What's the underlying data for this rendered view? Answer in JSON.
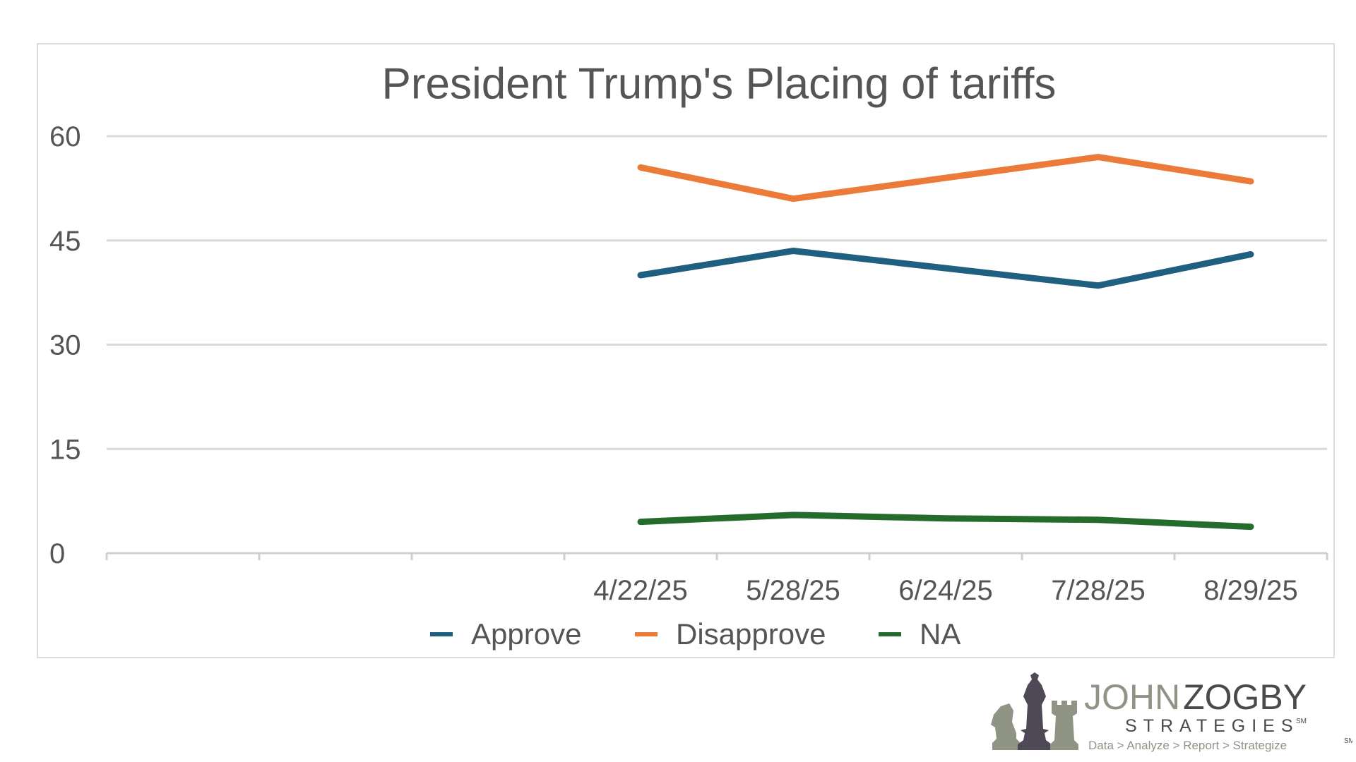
{
  "chart_data": {
    "type": "line",
    "title": "President Trump's Placing of tariffs",
    "xlabel": "",
    "ylabel": "",
    "categories": [
      "",
      "",
      "",
      "4/22/25",
      "5/28/25",
      "6/24/25",
      "7/28/25",
      "8/29/25"
    ],
    "ylim": [
      0,
      60
    ],
    "yticks": [
      0,
      15,
      30,
      45,
      60
    ],
    "grid": true,
    "legend": "bottom",
    "series": [
      {
        "name": "Approve",
        "color": "#1f5f80",
        "values": [
          null,
          null,
          null,
          40,
          43.5,
          41,
          38.5,
          43
        ]
      },
      {
        "name": "Disapprove",
        "color": "#ec7b3a",
        "values": [
          null,
          null,
          null,
          55.5,
          51,
          54,
          57,
          53.5
        ]
      },
      {
        "name": "NA",
        "color": "#256b2c",
        "values": [
          null,
          null,
          null,
          4.5,
          5.5,
          5,
          4.8,
          3.8
        ]
      }
    ]
  },
  "logo": {
    "name_part1": "JOHN",
    "name_part2": "ZOGBY",
    "subtitle": "STRATEGIES",
    "mark": "SM",
    "tagline": "Data > Analyze > Report > Strategize",
    "tagline_mark": "SM",
    "icon": "chess-pieces-icon"
  }
}
